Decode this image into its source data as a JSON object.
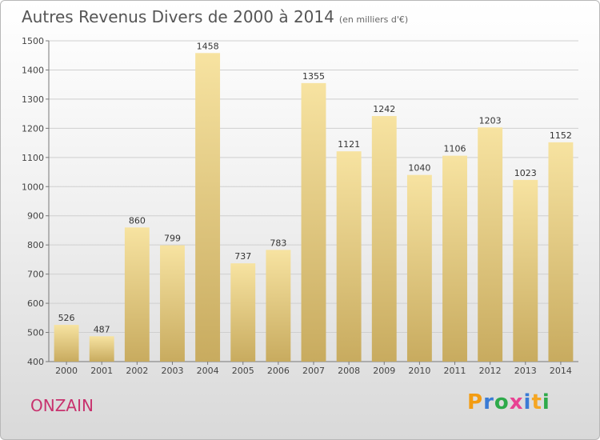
{
  "header": {
    "title": "Autres Revenus Divers de 2000 à 2014",
    "subtitle": "(en milliers d'€)"
  },
  "footer": {
    "town": "ONZAIN",
    "logo_letters": [
      "P",
      "r",
      "o",
      "x",
      "i",
      "t",
      "i"
    ],
    "logo_colors": [
      "#f39c12",
      "#3a7bd5",
      "#2eaa4a",
      "#e84393",
      "#3a7bd5",
      "#f5a623",
      "#2eaa4a"
    ]
  },
  "colors": {
    "bar_light": "#f7e3a1",
    "bar_dark": "#c8ab5f",
    "grid": "#cfcfcf",
    "axis": "#777777"
  },
  "chart_data": {
    "type": "bar",
    "title": "Autres Revenus Divers de 2000 à 2014",
    "subtitle": "(en milliers d'€)",
    "categories": [
      "2000",
      "2001",
      "2002",
      "2003",
      "2004",
      "2005",
      "2006",
      "2007",
      "2008",
      "2009",
      "2010",
      "2011",
      "2012",
      "2013",
      "2014"
    ],
    "values": [
      526,
      487,
      860,
      799,
      1458,
      737,
      783,
      1355,
      1121,
      1242,
      1040,
      1106,
      1203,
      1023,
      1152
    ],
    "ylim": [
      400,
      1500
    ],
    "yticks": [
      400,
      500,
      600,
      700,
      800,
      900,
      1000,
      1100,
      1200,
      1300,
      1400,
      1500
    ],
    "grid": true,
    "legend": "none"
  }
}
